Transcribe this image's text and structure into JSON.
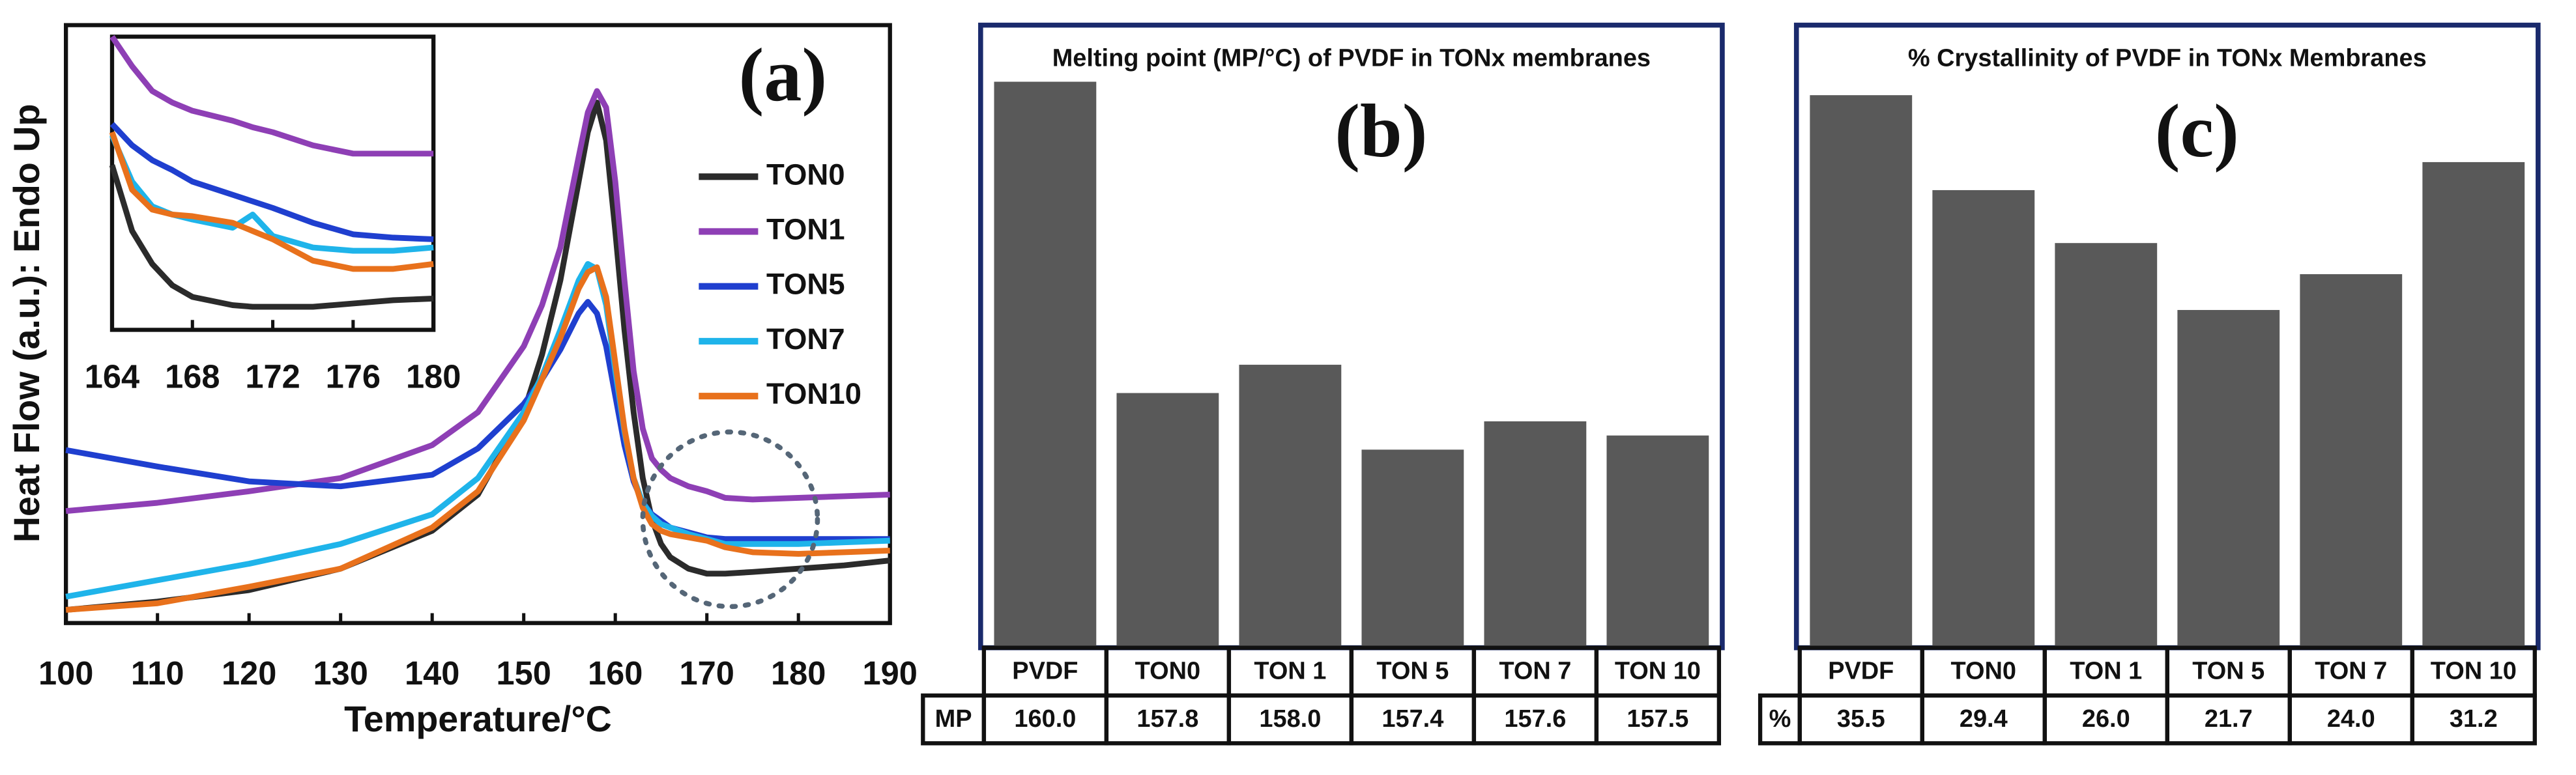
{
  "chart_data": [
    {
      "type": "line",
      "label": "(a)",
      "x_label": "Temperature/°C",
      "y_label": "Heat Flow (a.u.): Endo Up",
      "x": [
        100,
        110,
        120,
        130,
        140,
        145,
        150,
        152,
        154,
        156,
        157,
        158,
        159,
        160,
        161,
        162,
        163,
        164,
        165,
        166,
        168,
        170,
        172,
        175,
        180,
        185,
        190
      ],
      "xlim": [
        100,
        190
      ],
      "xticks": [
        100,
        110,
        120,
        130,
        140,
        150,
        160,
        170,
        180,
        190
      ],
      "ylim": [
        0,
        363
      ],
      "series": [
        {
          "name": "TON0",
          "color": "#2b2b2b",
          "values": [
            8,
            13,
            20,
            33,
            56,
            78,
            128,
            163,
            208,
            268,
            298,
            316,
            293,
            238,
            178,
            128,
            88,
            63,
            48,
            40,
            33,
            30,
            30,
            31,
            33,
            35,
            38
          ]
        },
        {
          "name": "TON1",
          "color": "#8e3fb5",
          "values": [
            68,
            73,
            80,
            88,
            108,
            128,
            168,
            193,
            228,
            283,
            310,
            323,
            313,
            268,
            208,
            153,
            118,
            100,
            93,
            88,
            83,
            80,
            76,
            75,
            76,
            77,
            78
          ]
        },
        {
          "name": "TON5",
          "color": "#1f3fcf",
          "values": [
            105,
            95,
            86,
            83,
            90,
            106,
            133,
            148,
            166,
            188,
            195,
            188,
            168,
            138,
            108,
            86,
            73,
            66,
            62,
            58,
            55,
            52,
            51,
            51,
            51,
            51,
            51
          ]
        },
        {
          "name": "TON7",
          "color": "#1fb4ea",
          "values": [
            16,
            26,
            36,
            48,
            66,
            88,
            128,
            150,
            178,
            208,
            218,
            215,
            193,
            153,
            116,
            88,
            73,
            65,
            60,
            58,
            54,
            51,
            48,
            48,
            48,
            49,
            50
          ]
        },
        {
          "name": "TON10",
          "color": "#e8711c",
          "values": [
            8,
            12,
            22,
            33,
            58,
            80,
            123,
            148,
            173,
            203,
            213,
            216,
            198,
            158,
            118,
            88,
            70,
            60,
            56,
            54,
            52,
            50,
            46,
            43,
            42,
            43,
            44
          ]
        }
      ]
    },
    {
      "type": "line",
      "x": [
        164,
        165,
        166,
        167,
        168,
        170,
        171,
        172,
        174,
        176,
        178,
        180
      ],
      "xlim": [
        164,
        180
      ],
      "xticks": [
        164,
        168,
        172,
        176,
        180
      ],
      "ylim": [
        0,
        178
      ],
      "series": [
        {
          "color": "#8e3fb5",
          "values": [
            178,
            160,
            145,
            138,
            133,
            127,
            123,
            120,
            112,
            107,
            107,
            107
          ]
        },
        {
          "color": "#1f3fcf",
          "values": [
            125,
            112,
            103,
            97,
            90,
            82,
            78,
            74,
            65,
            58,
            56,
            55
          ]
        },
        {
          "color": "#1fb4ea",
          "values": [
            118,
            90,
            75,
            70,
            67,
            62,
            70,
            57,
            50,
            48,
            48,
            50
          ]
        },
        {
          "color": "#e8711c",
          "values": [
            120,
            85,
            73,
            70,
            69,
            65,
            60,
            55,
            42,
            37,
            37,
            40
          ]
        },
        {
          "color": "#2b2b2b",
          "values": [
            100,
            60,
            40,
            27,
            20,
            15,
            14,
            14,
            14,
            16,
            18,
            19
          ]
        }
      ]
    },
    {
      "type": "bar",
      "title": "Melting point (MP/°C) of PVDF in TONx membranes",
      "label": "(b)",
      "row_label": "MP",
      "categories": [
        "PVDF",
        "TON0",
        "TON 1",
        "TON 5",
        "TON 7",
        "TON 10"
      ],
      "values": [
        160.0,
        157.8,
        158.0,
        157.4,
        157.6,
        157.5
      ],
      "value_labels": [
        "160.0",
        "157.8",
        "158.0",
        "157.4",
        "157.6",
        "157.5"
      ],
      "color": "#595959",
      "ylim": [
        156,
        160.4
      ]
    },
    {
      "type": "bar",
      "title": "% Crystallinity of PVDF in TONx Membranes",
      "label": "(c)",
      "row_label": "%",
      "categories": [
        "PVDF",
        "TON0",
        "TON 1",
        "TON 5",
        "TON 7",
        "TON 10"
      ],
      "values": [
        35.5,
        29.4,
        26.0,
        21.7,
        24.0,
        31.2
      ],
      "value_labels": [
        "35.5",
        "29.4",
        "26.0",
        "21.7",
        "24.0",
        "31.2"
      ],
      "color": "#595959",
      "ylim": [
        0,
        40
      ]
    }
  ]
}
